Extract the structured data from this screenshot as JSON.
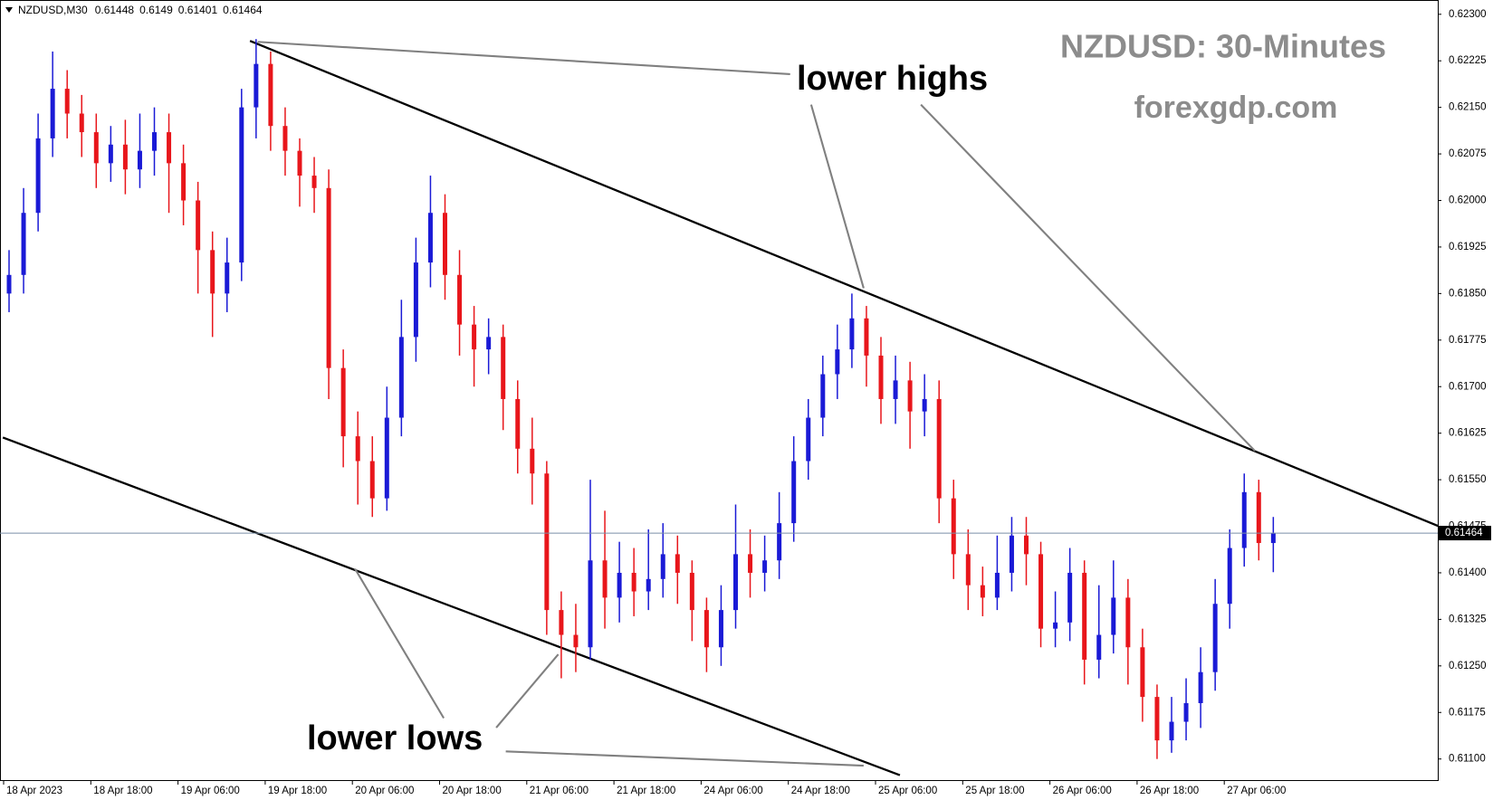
{
  "chart_data": {
    "type": "candlestick",
    "symbol": "NZDUSD,M30",
    "title": "NZDUSD: 30-Minutes",
    "subtitle": "forexgdp.com",
    "annotations": [
      "lower highs",
      "lower lows"
    ],
    "up_color": "#1a1ad6",
    "down_color": "#e8161b",
    "ylim": [
      0.61066,
      0.62323
    ],
    "yticks": [
      {
        "value": 0.611,
        "label": "0.61100"
      },
      {
        "value": 0.61175,
        "label": "0.61175"
      },
      {
        "value": 0.6125,
        "label": "0.61250"
      },
      {
        "value": 0.61325,
        "label": "0.61325"
      },
      {
        "value": 0.614,
        "label": "0.61400"
      },
      {
        "value": 0.61475,
        "label": "0.61475"
      },
      {
        "value": 0.6155,
        "label": "0.61550"
      },
      {
        "value": 0.61625,
        "label": "0.61625"
      },
      {
        "value": 0.617,
        "label": "0.61700"
      },
      {
        "value": 0.61775,
        "label": "0.61775"
      },
      {
        "value": 0.6185,
        "label": "0.61850"
      },
      {
        "value": 0.61925,
        "label": "0.61925"
      },
      {
        "value": 0.62,
        "label": "0.62000"
      },
      {
        "value": 0.62075,
        "label": "0.62075"
      },
      {
        "value": 0.6215,
        "label": "0.62150"
      },
      {
        "value": 0.62225,
        "label": "0.62225"
      },
      {
        "value": 0.623,
        "label": "0.62300"
      }
    ],
    "xticks": [
      {
        "value": 0,
        "label": "18 Apr 2023"
      },
      {
        "value": 6,
        "label": "18 Apr 18:00"
      },
      {
        "value": 12,
        "label": "19 Apr 06:00"
      },
      {
        "value": 18,
        "label": "19 Apr 18:00"
      },
      {
        "value": 24,
        "label": "20 Apr 06:00"
      },
      {
        "value": 30,
        "label": "20 Apr 18:00"
      },
      {
        "value": 36,
        "label": "21 Apr 06:00"
      },
      {
        "value": 42,
        "label": "21 Apr 18:00"
      },
      {
        "value": 48,
        "label": "24 Apr 06:00"
      },
      {
        "value": 54,
        "label": "24 Apr 18:00"
      },
      {
        "value": 60,
        "label": "25 Apr 06:00"
      },
      {
        "value": 66,
        "label": "25 Apr 18:00"
      },
      {
        "value": 72,
        "label": "26 Apr 06:00"
      },
      {
        "value": 78,
        "label": "26 Apr 18:00"
      },
      {
        "value": 84,
        "label": "27 Apr 06:00"
      }
    ],
    "open": [
      0.6185,
      0.6188,
      0.6198,
      0.621,
      0.6218,
      0.6214,
      0.6211,
      0.6206,
      0.6209,
      0.6205,
      0.6208,
      0.6211,
      0.6206,
      0.62,
      0.6192,
      0.6185,
      0.619,
      0.6215,
      0.6222,
      0.6212,
      0.6208,
      0.6204,
      0.6202,
      0.6173,
      0.6162,
      0.6158,
      0.6152,
      0.6165,
      0.6178,
      0.619,
      0.6198,
      0.6188,
      0.618,
      0.6176,
      0.6178,
      0.6168,
      0.616,
      0.6156,
      0.6134,
      0.613,
      0.6128,
      0.6142,
      0.6136,
      0.614,
      0.6137,
      0.6139,
      0.6143,
      0.614,
      0.6134,
      0.6128,
      0.6134,
      0.6143,
      0.614,
      0.6142,
      0.6148,
      0.6158,
      0.6165,
      0.6172,
      0.6176,
      0.6181,
      0.6175,
      0.6168,
      0.6171,
      0.6166,
      0.6168,
      0.6152,
      0.6143,
      0.6138,
      0.6136,
      0.614,
      0.6146,
      0.6143,
      0.6131,
      0.6132,
      0.614,
      0.6126,
      0.613,
      0.6136,
      0.6128,
      0.612,
      0.6113,
      0.6116,
      0.6119,
      0.6124,
      0.6135,
      0.6144,
      0.6153,
      0.61448
    ],
    "high": [
      0.6192,
      0.6202,
      0.6214,
      0.6224,
      0.6221,
      0.6217,
      0.6214,
      0.6212,
      0.6213,
      0.6214,
      0.6215,
      0.6214,
      0.6209,
      0.6203,
      0.6195,
      0.6194,
      0.6218,
      0.6226,
      0.6224,
      0.6215,
      0.621,
      0.6207,
      0.6205,
      0.6176,
      0.6166,
      0.6162,
      0.617,
      0.6184,
      0.6194,
      0.6204,
      0.6201,
      0.6192,
      0.6183,
      0.6181,
      0.618,
      0.6171,
      0.6165,
      0.6158,
      0.6137,
      0.6135,
      0.6155,
      0.615,
      0.6145,
      0.6144,
      0.6147,
      0.6148,
      0.6146,
      0.6142,
      0.6136,
      0.6138,
      0.6151,
      0.6147,
      0.6146,
      0.6153,
      0.6162,
      0.6168,
      0.6175,
      0.618,
      0.6185,
      0.6183,
      0.6178,
      0.6175,
      0.6174,
      0.6172,
      0.6171,
      0.6155,
      0.6147,
      0.6141,
      0.6146,
      0.6149,
      0.6149,
      0.6145,
      0.6137,
      0.6144,
      0.6142,
      0.6138,
      0.6142,
      0.6139,
      0.6131,
      0.6122,
      0.612,
      0.6123,
      0.6128,
      0.6139,
      0.6147,
      0.6156,
      0.6155,
      0.6149
    ],
    "low": [
      0.6182,
      0.6185,
      0.6195,
      0.6207,
      0.621,
      0.6207,
      0.6202,
      0.6203,
      0.6201,
      0.6202,
      0.6204,
      0.6198,
      0.6196,
      0.6185,
      0.6178,
      0.6182,
      0.6187,
      0.621,
      0.6208,
      0.6204,
      0.6199,
      0.6198,
      0.6168,
      0.6157,
      0.6151,
      0.6149,
      0.615,
      0.6162,
      0.6174,
      0.6186,
      0.6184,
      0.6175,
      0.617,
      0.6172,
      0.6163,
      0.6156,
      0.6151,
      0.613,
      0.6123,
      0.6124,
      0.6126,
      0.6131,
      0.6132,
      0.6133,
      0.6134,
      0.6136,
      0.6135,
      0.6129,
      0.6124,
      0.6125,
      0.6131,
      0.6136,
      0.6137,
      0.6139,
      0.6145,
      0.6155,
      0.6162,
      0.6168,
      0.6173,
      0.617,
      0.6164,
      0.6164,
      0.616,
      0.6162,
      0.6148,
      0.6139,
      0.6134,
      0.6133,
      0.6134,
      0.6137,
      0.6138,
      0.6128,
      0.6128,
      0.6129,
      0.6122,
      0.6123,
      0.6127,
      0.6122,
      0.6116,
      0.611,
      0.6111,
      0.6113,
      0.6115,
      0.6121,
      0.6131,
      0.6141,
      0.6142,
      0.61401
    ],
    "close": [
      0.6188,
      0.6198,
      0.621,
      0.6218,
      0.6214,
      0.6211,
      0.6206,
      0.6209,
      0.6205,
      0.6208,
      0.6211,
      0.6206,
      0.62,
      0.6192,
      0.6185,
      0.619,
      0.6215,
      0.6222,
      0.6212,
      0.6208,
      0.6204,
      0.6202,
      0.6173,
      0.6162,
      0.6158,
      0.6152,
      0.6165,
      0.6178,
      0.619,
      0.6198,
      0.6188,
      0.618,
      0.6176,
      0.6178,
      0.6168,
      0.616,
      0.6156,
      0.6134,
      0.613,
      0.6128,
      0.6142,
      0.6136,
      0.614,
      0.6137,
      0.6139,
      0.6143,
      0.614,
      0.6134,
      0.6128,
      0.6134,
      0.6143,
      0.614,
      0.6142,
      0.6148,
      0.6158,
      0.6165,
      0.6172,
      0.6176,
      0.6181,
      0.6175,
      0.6168,
      0.6171,
      0.6166,
      0.6168,
      0.6152,
      0.6143,
      0.6138,
      0.6136,
      0.614,
      0.6146,
      0.6143,
      0.6131,
      0.6132,
      0.614,
      0.6126,
      0.613,
      0.6136,
      0.6128,
      0.612,
      0.6113,
      0.6116,
      0.6119,
      0.6124,
      0.6135,
      0.6144,
      0.6153,
      0.61448,
      0.61464
    ]
  }
}
